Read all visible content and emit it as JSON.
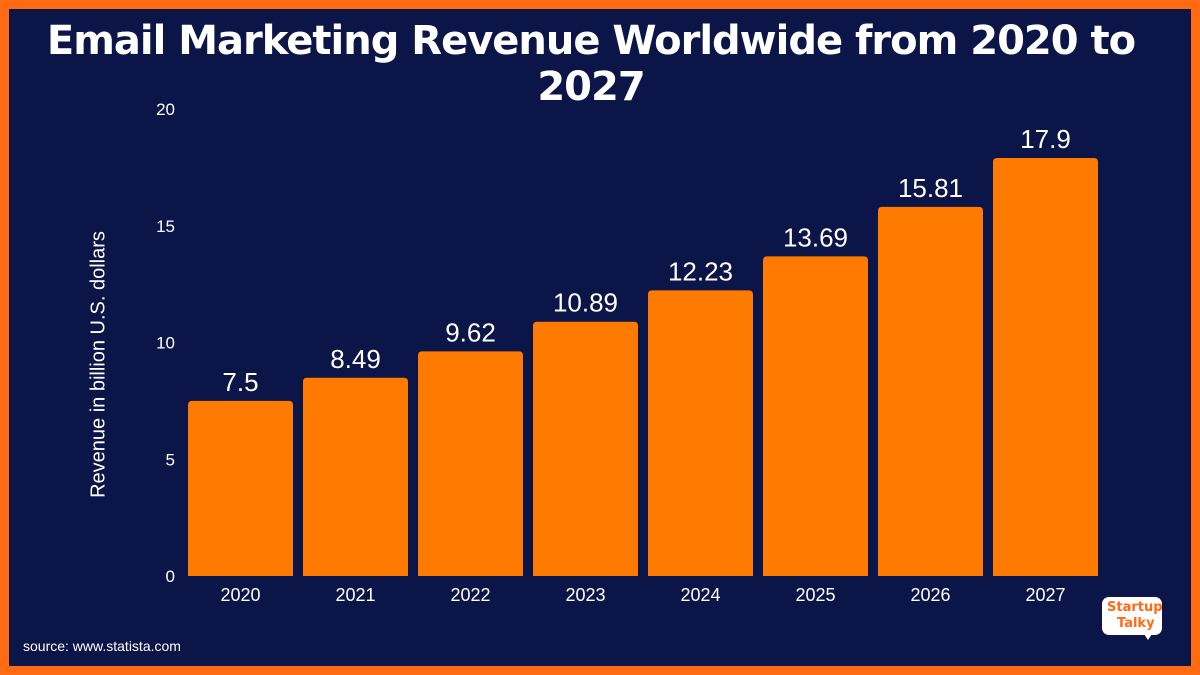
{
  "title": "Email Marketing Revenue Worldwide from 2020 to 2027",
  "source": "source: www.statista.com",
  "logo": {
    "line1": "Startup",
    "line2": "Talky"
  },
  "colors": {
    "background": "#0b1547",
    "border": "#ff6a13",
    "bar": "#ff7a00",
    "text": "#ffffff"
  },
  "chart_data": {
    "type": "bar",
    "title": "Email Marketing Revenue Worldwide from 2020 to 2027",
    "categories": [
      "2020",
      "2021",
      "2022",
      "2023",
      "2024",
      "2025",
      "2026",
      "2027"
    ],
    "values": [
      7.5,
      8.49,
      9.62,
      10.89,
      12.23,
      13.69,
      15.81,
      17.9
    ],
    "value_labels": [
      "7.5",
      "8.49",
      "9.62",
      "10.89",
      "12.23",
      "13.69",
      "15.81",
      "17.9"
    ],
    "xlabel": "",
    "ylabel": "Revenue in billion U.S. dollars",
    "ylim": [
      0,
      20
    ],
    "yticks": [
      0,
      5,
      10,
      15,
      20
    ],
    "grid": false,
    "legend": "none"
  }
}
